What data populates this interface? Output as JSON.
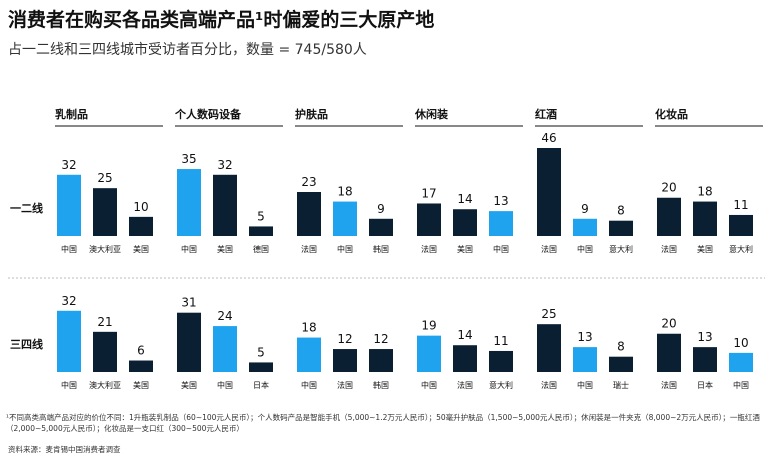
{
  "title": "消费者在购买各品类高端产品¹时偏爱的三大原产地",
  "subtitle": "占一二线和三四线城市受访者百分比，数量 = 745/580人",
  "columns": [
    "乳制品",
    "个人数码设备",
    "护肤品",
    "休闲装",
    "红酒",
    "化妆品"
  ],
  "rows": [
    "一二线",
    "三四线"
  ],
  "footnote": "¹不同高类高端产品对应的价位不同：1升瓶装乳制品（60~100元人民币）；个人数码产品是智能手机（5,000~1.2万元人民币）；50毫升护肤品（1,500~5,000元人民币）；休闲装是一件夹克（8,000~2万元人民币）；一瓶红酒（2,000~5,000元人民币）；化妆品是一支口红（300~500元人民币）",
  "source": "资料来源：麦肯锡中国消费者调查",
  "chart_data": [
    {
      "type": "bar",
      "categories": [
        "中国",
        "澳大利亚",
        "美国"
      ],
      "values": [
        32,
        25,
        10
      ],
      "colors": [
        "#1fa3ee",
        "#0b1f33",
        "#0b1f33"
      ]
    },
    {
      "type": "bar",
      "categories": [
        "中国",
        "美国",
        "德国"
      ],
      "values": [
        35,
        32,
        5
      ],
      "colors": [
        "#1fa3ee",
        "#0b1f33",
        "#0b1f33"
      ]
    },
    {
      "type": "bar",
      "categories": [
        "法国",
        "中国",
        "韩国"
      ],
      "values": [
        23,
        18,
        9
      ],
      "colors": [
        "#0b1f33",
        "#1fa3ee",
        "#0b1f33"
      ]
    },
    {
      "type": "bar",
      "categories": [
        "法国",
        "美国",
        "中国"
      ],
      "values": [
        17,
        14,
        13
      ],
      "colors": [
        "#0b1f33",
        "#0b1f33",
        "#1fa3ee"
      ]
    },
    {
      "type": "bar",
      "categories": [
        "法国",
        "中国",
        "意大利"
      ],
      "values": [
        46,
        9,
        8
      ],
      "colors": [
        "#0b1f33",
        "#1fa3ee",
        "#0b1f33"
      ]
    },
    {
      "type": "bar",
      "categories": [
        "法国",
        "美国",
        "意大利"
      ],
      "values": [
        20,
        18,
        11
      ],
      "colors": [
        "#0b1f33",
        "#0b1f33",
        "#0b1f33"
      ]
    },
    {
      "type": "bar",
      "categories": [
        "中国",
        "澳大利亚",
        "美国"
      ],
      "values": [
        32,
        21,
        6
      ],
      "colors": [
        "#1fa3ee",
        "#0b1f33",
        "#0b1f33"
      ]
    },
    {
      "type": "bar",
      "categories": [
        "美国",
        "中国",
        "日本"
      ],
      "values": [
        31,
        24,
        5
      ],
      "colors": [
        "#0b1f33",
        "#1fa3ee",
        "#0b1f33"
      ]
    },
    {
      "type": "bar",
      "categories": [
        "中国",
        "法国",
        "韩国"
      ],
      "values": [
        18,
        12,
        12
      ],
      "colors": [
        "#1fa3ee",
        "#0b1f33",
        "#0b1f33"
      ]
    },
    {
      "type": "bar",
      "categories": [
        "中国",
        "法国",
        "意大利"
      ],
      "values": [
        19,
        14,
        11
      ],
      "colors": [
        "#1fa3ee",
        "#0b1f33",
        "#0b1f33"
      ]
    },
    {
      "type": "bar",
      "categories": [
        "法国",
        "中国",
        "瑞士"
      ],
      "values": [
        25,
        13,
        8
      ],
      "colors": [
        "#0b1f33",
        "#1fa3ee",
        "#0b1f33"
      ]
    },
    {
      "type": "bar",
      "categories": [
        "法国",
        "日本",
        "中国"
      ],
      "values": [
        20,
        13,
        10
      ],
      "colors": [
        "#0b1f33",
        "#0b1f33",
        "#1fa3ee"
      ]
    }
  ]
}
